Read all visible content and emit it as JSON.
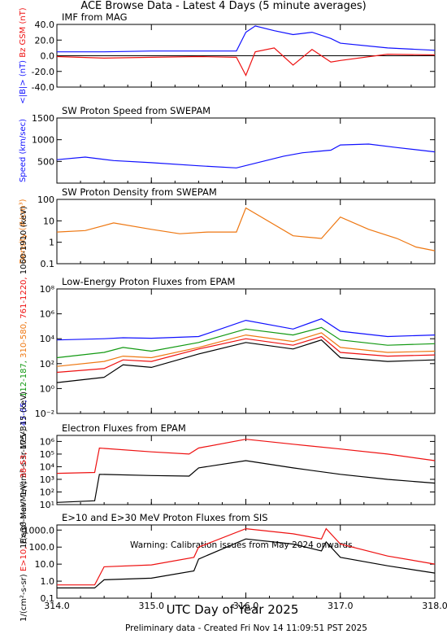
{
  "title": "ACE Browse Data - Latest 4 Days (5 minute averages)",
  "xlabel": "UTC Day of Year 2025",
  "footer": "Preliminary data - Created Fri Nov 14 11:09:51 PST 2025",
  "colors": {
    "blue": "#1010ff",
    "red": "#ee1111",
    "green": "#119911",
    "orange": "#ee7711",
    "black": "#000000"
  },
  "chart_data": [
    {
      "type": "line",
      "title": "IMF from MAG",
      "ylim": [
        -40,
        40
      ],
      "yticks": [
        "-40.0",
        "-20.0",
        "0.0",
        "20.0",
        "40.0"
      ],
      "ylabel_parts": [
        {
          "text": "<|B|> (nT)",
          "color": "#1010ff"
        },
        {
          "text": "Bz GSM (nT)",
          "color": "#ee1111"
        }
      ],
      "x": [
        314.0,
        314.5,
        315.0,
        315.5,
        315.9,
        316.0,
        316.1,
        316.3,
        316.5,
        316.7,
        316.9,
        317.0,
        317.5,
        318.0
      ],
      "series": [
        {
          "name": "<|B|>",
          "color": "#1010ff",
          "values": [
            5,
            5,
            6,
            6,
            6,
            30,
            38,
            32,
            27,
            30,
            22,
            16,
            10,
            7
          ]
        },
        {
          "name": "Bz GSM",
          "color": "#ee1111",
          "values": [
            -1,
            -3,
            -2,
            -1,
            -2,
            -25,
            5,
            10,
            -12,
            8,
            -8,
            -6,
            2,
            1
          ]
        }
      ]
    },
    {
      "type": "line",
      "title": "SW Proton Speed from SWEPAM",
      "ylim": [
        0,
        1500
      ],
      "yticks": [
        "500",
        "1000",
        "1500"
      ],
      "ylabel_parts": [
        {
          "text": "Speed (km/sec)",
          "color": "#1010ff"
        }
      ],
      "x": [
        314.0,
        314.3,
        314.6,
        315.0,
        315.5,
        315.9,
        316.4,
        316.6,
        316.9,
        317.0,
        317.3,
        317.6,
        318.0
      ],
      "series": [
        {
          "name": "Speed",
          "color": "#1010ff",
          "values": [
            540,
            600,
            520,
            470,
            400,
            350,
            620,
            700,
            760,
            880,
            900,
            820,
            720
          ]
        }
      ]
    },
    {
      "type": "line",
      "title": "SW Proton Density from SWEPAM",
      "ylim": [
        0.1,
        100
      ],
      "log": true,
      "yticks": [
        "0.1",
        "1",
        "10",
        "100"
      ],
      "ylabel_parts": [
        {
          "text": "Density (#/cm³)",
          "color": "#ee7711"
        }
      ],
      "x": [
        314.0,
        314.3,
        314.6,
        315.0,
        315.3,
        315.6,
        315.9,
        316.0,
        316.5,
        316.8,
        317.0,
        317.3,
        317.6,
        317.8,
        318.0
      ],
      "series": [
        {
          "name": "Density",
          "color": "#ee7711",
          "values": [
            3,
            3.5,
            8,
            4,
            2.5,
            3,
            3,
            40,
            2,
            1.5,
            15,
            4,
            1.5,
            0.6,
            0.4
          ]
        }
      ]
    },
    {
      "type": "line",
      "title": "Low-Energy Proton Fluxes from EPAM",
      "ylim": [
        0.01,
        100000000
      ],
      "log": true,
      "yticks": [
        "10⁻²",
        "10⁰",
        "10²",
        "10⁴",
        "10⁶",
        "10⁸"
      ],
      "ylabel_parts": [
        {
          "text": "1/(cm²-s-sr-MeV)",
          "color": "#000000"
        },
        {
          "text": "47-65,",
          "color": "#1010ff"
        },
        {
          "text": "112-187,",
          "color": "#119911"
        },
        {
          "text": "310-580,",
          "color": "#ee7711"
        },
        {
          "text": "761-1220,",
          "color": "#ee1111"
        },
        {
          "text": "1060-1910 (keV)",
          "color": "#000000"
        }
      ],
      "x": [
        314.0,
        314.5,
        314.7,
        315.0,
        315.5,
        316.0,
        316.5,
        316.8,
        317.0,
        317.5,
        318.0
      ],
      "series": [
        {
          "name": "47-65 keV",
          "color": "#1010ff",
          "values": [
            8000,
            10000,
            12000,
            11000,
            15000,
            300000,
            60000,
            400000,
            40000,
            15000,
            20000
          ]
        },
        {
          "name": "112-187 keV",
          "color": "#119911",
          "values": [
            300,
            800,
            2000,
            1000,
            5000,
            60000,
            20000,
            80000,
            8000,
            3000,
            4000
          ]
        },
        {
          "name": "310-580 keV",
          "color": "#ee7711",
          "values": [
            60,
            150,
            400,
            300,
            2000,
            20000,
            6000,
            30000,
            2000,
            800,
            1000
          ]
        },
        {
          "name": "761-1220 keV",
          "color": "#ee1111",
          "values": [
            20,
            40,
            200,
            150,
            1500,
            10000,
            3000,
            15000,
            800,
            400,
            500
          ]
        },
        {
          "name": "1060-1910 keV",
          "color": "#000000",
          "values": [
            3,
            8,
            80,
            50,
            600,
            5000,
            1500,
            8000,
            300,
            150,
            200
          ]
        }
      ]
    },
    {
      "type": "line",
      "title": "Electron Fluxes from EPAM",
      "ylim": [
        10,
        3000000
      ],
      "log": true,
      "yticks": [
        "10¹",
        "10²",
        "10³",
        "10⁴",
        "10⁵",
        "10⁶"
      ],
      "ylabel_parts": [
        {
          "text": "1/(cm²-s-sr-MeV)",
          "color": "#000000"
        },
        {
          "text": "38-53,",
          "color": "#ee1111"
        },
        {
          "text": "175-315 (keV)",
          "color": "#000000"
        }
      ],
      "x": [
        314.0,
        314.4,
        314.45,
        315.0,
        315.4,
        315.5,
        316.0,
        316.5,
        317.0,
        317.5,
        318.0
      ],
      "series": [
        {
          "name": "38-53 keV",
          "color": "#ee1111",
          "values": [
            3000,
            3500,
            300000,
            150000,
            100000,
            300000,
            1500000,
            600000,
            250000,
            100000,
            30000
          ]
        },
        {
          "name": "175-315 keV",
          "color": "#000000",
          "values": [
            15,
            20,
            2500,
            2000,
            1800,
            8000,
            30000,
            8000,
            2500,
            1000,
            500
          ]
        }
      ]
    },
    {
      "type": "line",
      "title": "E>10 and E>30 MeV Proton Fluxes from SIS",
      "ylim": [
        0.1,
        2000
      ],
      "log": true,
      "yticks": [
        "0.1",
        "1.0",
        "10.0",
        "100.0",
        "1000.0"
      ],
      "annotation": "Warning: Calibration issues from May 2024 onwards.",
      "ylabel_parts": [
        {
          "text": "1/(cm²-s-sr)",
          "color": "#000000"
        },
        {
          "text": "E>10,",
          "color": "#ee1111"
        },
        {
          "text": "E>30 MeV",
          "color": "#000000"
        }
      ],
      "x": [
        314.0,
        314.4,
        314.5,
        315.0,
        315.45,
        315.5,
        316.0,
        316.5,
        316.8,
        316.85,
        317.0,
        317.5,
        318.0
      ],
      "series": [
        {
          "name": "E>10 MeV",
          "color": "#ee1111",
          "values": [
            0.6,
            0.6,
            7,
            9,
            25,
            100,
            1200,
            600,
            300,
            1200,
            150,
            30,
            10
          ]
        },
        {
          "name": "E>30 MeV",
          "color": "#000000",
          "values": [
            0.4,
            0.4,
            1.2,
            1.5,
            4,
            20,
            300,
            150,
            60,
            200,
            25,
            8,
            3
          ]
        }
      ]
    }
  ],
  "xaxis": {
    "range": [
      314.0,
      318.0
    ],
    "ticks": [
      "314.0",
      "315.0",
      "316.0",
      "317.0",
      "318.0"
    ]
  }
}
